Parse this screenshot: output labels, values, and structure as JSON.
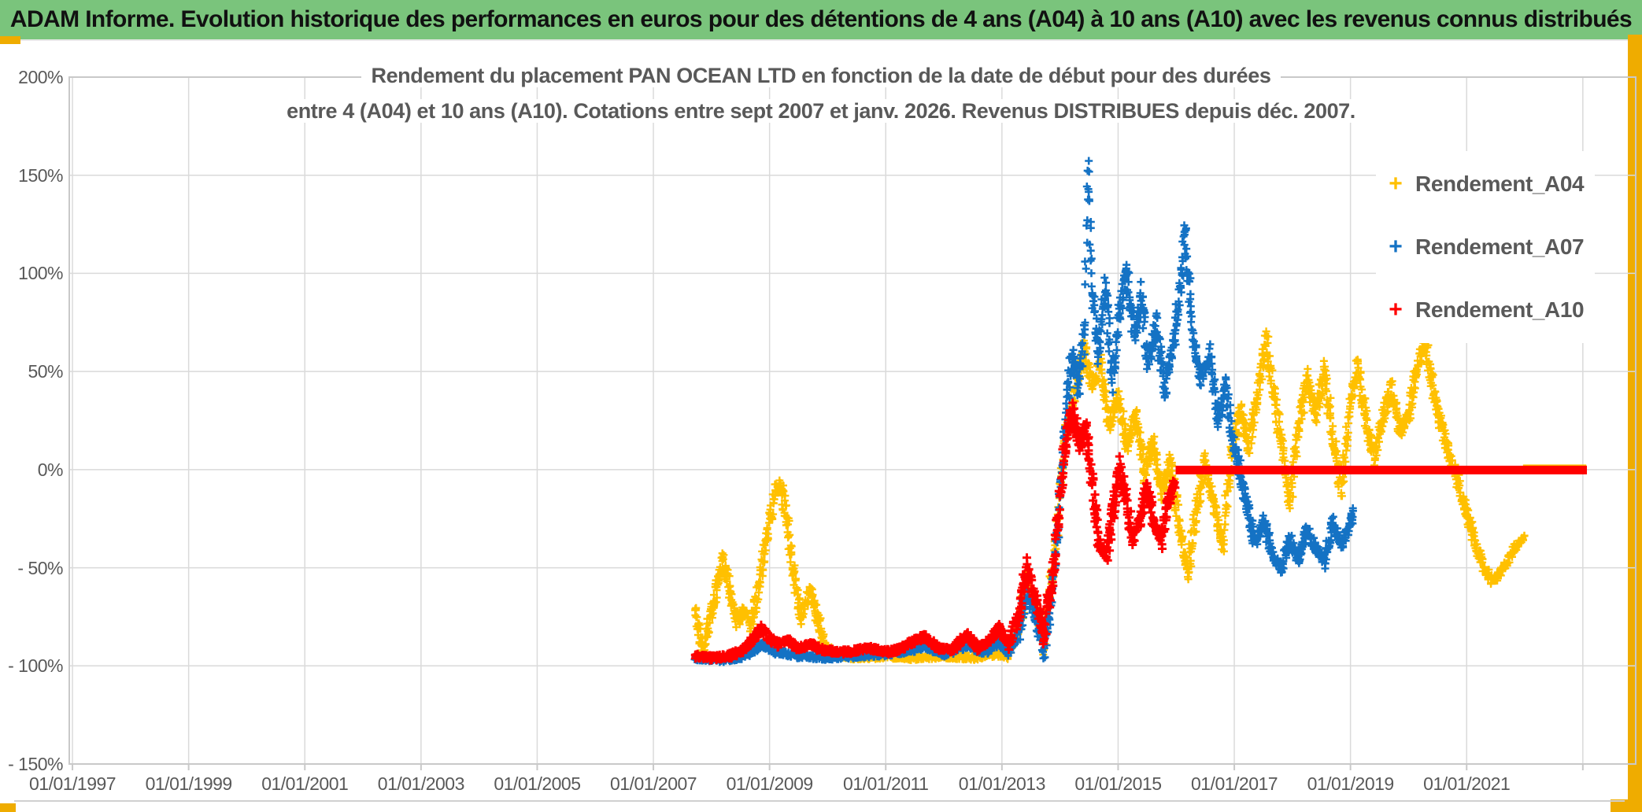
{
  "header": {
    "title": "ADAM Informe. Evolution historique des performances en euros pour des détentions de 4 ans (A04) à 10 ans (A10) avec les revenus connus distribués",
    "bg_color": "#7AC47C",
    "text_color": "#111111"
  },
  "accents": {
    "gold_color": "#EFAC00"
  },
  "chart_data": {
    "type": "scatter",
    "title_lines": [
      "Rendement du placement PAN OCEAN LTD en fonction de la date de début pour des durées",
      "entre 4 (A04) et 10 ans (A10). Cotations entre sept 2007 et janv. 2026. Revenus DISTRIBUES depuis déc. 2007."
    ],
    "x_axis": {
      "tick_labels": [
        "01/01/1997",
        "01/01/1999",
        "01/01/2001",
        "01/01/2003",
        "01/01/2005",
        "01/01/2007",
        "01/01/2009",
        "01/01/2011",
        "01/01/2013",
        "01/01/2015",
        "01/01/2017",
        "01/01/2019",
        "01/01/2021"
      ],
      "tick_years": [
        1997,
        1999,
        2001,
        2003,
        2005,
        2007,
        2009,
        2011,
        2013,
        2015,
        2017,
        2019,
        2021
      ],
      "extra_gridline_years": [
        2023
      ],
      "domain_years": [
        1996.945,
        2023.91
      ]
    },
    "y_axis": {
      "tick_labels": [
        "200%",
        "150%",
        "100%",
        "50%",
        "0%",
        "- 50%",
        "- 100%",
        "- 150%"
      ],
      "tick_values": [
        200,
        150,
        100,
        50,
        0,
        -50,
        -100,
        -150
      ],
      "domain": [
        -150,
        200
      ]
    },
    "grid_color": "#DADADA",
    "border_color": "#C9C9C9",
    "axis_text_color": "#595959",
    "legend_position": "top-right",
    "series": [
      {
        "name": "Rendement_A04",
        "color": "#FFC000",
        "marker": "plus",
        "zero_segment": [
          2021.97,
          2023.06
        ],
        "keyframes": [
          [
            2007.72,
            -72
          ],
          [
            2007.8,
            -85
          ],
          [
            2007.88,
            -93
          ],
          [
            2007.95,
            -80
          ],
          [
            2008.1,
            -58
          ],
          [
            2008.2,
            -46
          ],
          [
            2008.3,
            -60
          ],
          [
            2008.45,
            -78
          ],
          [
            2008.55,
            -72
          ],
          [
            2008.68,
            -78
          ],
          [
            2008.82,
            -60
          ],
          [
            2008.95,
            -35
          ],
          [
            2009.1,
            -12
          ],
          [
            2009.2,
            -6
          ],
          [
            2009.32,
            -30
          ],
          [
            2009.45,
            -60
          ],
          [
            2009.55,
            -75
          ],
          [
            2009.7,
            -62
          ],
          [
            2009.82,
            -75
          ],
          [
            2009.95,
            -90
          ],
          [
            2010.15,
            -94
          ],
          [
            2010.5,
            -96
          ],
          [
            2011.0,
            -95
          ],
          [
            2011.5,
            -96
          ],
          [
            2012.0,
            -95
          ],
          [
            2012.5,
            -96
          ],
          [
            2012.9,
            -94
          ],
          [
            2013.1,
            -95
          ],
          [
            2013.3,
            -80
          ],
          [
            2013.42,
            -58
          ],
          [
            2013.58,
            -70
          ],
          [
            2013.72,
            -88
          ],
          [
            2013.82,
            -62
          ],
          [
            2013.95,
            -30
          ],
          [
            2014.08,
            15
          ],
          [
            2014.25,
            40
          ],
          [
            2014.42,
            62
          ],
          [
            2014.55,
            42
          ],
          [
            2014.7,
            55
          ],
          [
            2014.85,
            22
          ],
          [
            2015.0,
            38
          ],
          [
            2015.15,
            12
          ],
          [
            2015.3,
            28
          ],
          [
            2015.45,
            -2
          ],
          [
            2015.6,
            14
          ],
          [
            2015.75,
            -12
          ],
          [
            2015.9,
            4
          ],
          [
            2016.05,
            -28
          ],
          [
            2016.2,
            -52
          ],
          [
            2016.35,
            -20
          ],
          [
            2016.5,
            5
          ],
          [
            2016.65,
            -18
          ],
          [
            2016.8,
            -38
          ],
          [
            2016.95,
            8
          ],
          [
            2017.1,
            30
          ],
          [
            2017.25,
            12
          ],
          [
            2017.4,
            40
          ],
          [
            2017.55,
            66
          ],
          [
            2017.7,
            35
          ],
          [
            2017.85,
            5
          ],
          [
            2017.95,
            -16
          ],
          [
            2018.1,
            20
          ],
          [
            2018.25,
            46
          ],
          [
            2018.4,
            28
          ],
          [
            2018.55,
            50
          ],
          [
            2018.7,
            18
          ],
          [
            2018.85,
            -12
          ],
          [
            2019.0,
            35
          ],
          [
            2019.12,
            52
          ],
          [
            2019.25,
            28
          ],
          [
            2019.4,
            5
          ],
          [
            2019.55,
            25
          ],
          [
            2019.7,
            42
          ],
          [
            2019.85,
            18
          ],
          [
            2020.0,
            28
          ],
          [
            2020.12,
            48
          ],
          [
            2020.28,
            66
          ],
          [
            2020.42,
            40
          ],
          [
            2020.55,
            24
          ],
          [
            2020.7,
            8
          ],
          [
            2020.85,
            -6
          ],
          [
            2021.0,
            -22
          ],
          [
            2021.15,
            -38
          ],
          [
            2021.3,
            -50
          ],
          [
            2021.45,
            -57
          ],
          [
            2021.6,
            -52
          ],
          [
            2021.75,
            -44
          ],
          [
            2021.88,
            -38
          ],
          [
            2022.0,
            -35
          ]
        ]
      },
      {
        "name": "Rendement_A07",
        "color": "#1472C4",
        "marker": "plus",
        "zero_segment": null,
        "keyframes": [
          [
            2007.72,
            -96
          ],
          [
            2008.2,
            -97
          ],
          [
            2008.6,
            -95
          ],
          [
            2008.86,
            -89
          ],
          [
            2009.1,
            -93
          ],
          [
            2009.5,
            -95
          ],
          [
            2010.0,
            -96
          ],
          [
            2010.5,
            -95
          ],
          [
            2011.0,
            -94
          ],
          [
            2011.45,
            -92
          ],
          [
            2011.7,
            -90
          ],
          [
            2012.0,
            -94
          ],
          [
            2012.4,
            -90
          ],
          [
            2012.7,
            -93
          ],
          [
            2012.95,
            -88
          ],
          [
            2013.1,
            -93
          ],
          [
            2013.3,
            -82
          ],
          [
            2013.42,
            -62
          ],
          [
            2013.58,
            -75
          ],
          [
            2013.72,
            -92
          ],
          [
            2013.85,
            -68
          ],
          [
            2013.97,
            -30
          ],
          [
            2014.08,
            20
          ],
          [
            2014.2,
            60
          ],
          [
            2014.32,
            40
          ],
          [
            2014.42,
            70
          ],
          [
            2014.48,
            157
          ],
          [
            2014.56,
            88
          ],
          [
            2014.66,
            58
          ],
          [
            2014.78,
            95
          ],
          [
            2014.9,
            45
          ],
          [
            2015.02,
            80
          ],
          [
            2015.15,
            100
          ],
          [
            2015.28,
            68
          ],
          [
            2015.4,
            88
          ],
          [
            2015.52,
            55
          ],
          [
            2015.65,
            75
          ],
          [
            2015.8,
            40
          ],
          [
            2015.95,
            65
          ],
          [
            2016.05,
            88
          ],
          [
            2016.15,
            122
          ],
          [
            2016.28,
            72
          ],
          [
            2016.42,
            45
          ],
          [
            2016.58,
            58
          ],
          [
            2016.72,
            25
          ],
          [
            2016.85,
            42
          ],
          [
            2016.95,
            18
          ],
          [
            2017.08,
            2
          ],
          [
            2017.2,
            -15
          ],
          [
            2017.35,
            -38
          ],
          [
            2017.5,
            -25
          ],
          [
            2017.65,
            -43
          ],
          [
            2017.8,
            -50
          ],
          [
            2017.95,
            -35
          ],
          [
            2018.1,
            -46
          ],
          [
            2018.25,
            -30
          ],
          [
            2018.4,
            -40
          ],
          [
            2018.55,
            -46
          ],
          [
            2018.7,
            -28
          ],
          [
            2018.85,
            -38
          ],
          [
            2018.97,
            -30
          ],
          [
            2019.06,
            -20
          ]
        ]
      },
      {
        "name": "Rendement_A10",
        "color": "#FF0000",
        "marker": "plus",
        "zero_segment": [
          2015.99,
          2023.07
        ],
        "keyframes": [
          [
            2007.72,
            -95
          ],
          [
            2008.0,
            -96
          ],
          [
            2008.3,
            -95
          ],
          [
            2008.55,
            -92
          ],
          [
            2008.86,
            -81
          ],
          [
            2009.0,
            -86
          ],
          [
            2009.15,
            -89
          ],
          [
            2009.3,
            -87
          ],
          [
            2009.5,
            -91
          ],
          [
            2009.7,
            -89
          ],
          [
            2009.9,
            -92
          ],
          [
            2010.3,
            -93
          ],
          [
            2010.7,
            -91
          ],
          [
            2011.1,
            -93
          ],
          [
            2011.45,
            -88
          ],
          [
            2011.67,
            -85
          ],
          [
            2011.9,
            -91
          ],
          [
            2012.15,
            -92
          ],
          [
            2012.4,
            -84
          ],
          [
            2012.6,
            -91
          ],
          [
            2012.82,
            -86
          ],
          [
            2012.95,
            -81
          ],
          [
            2013.12,
            -89
          ],
          [
            2013.3,
            -73
          ],
          [
            2013.42,
            -50
          ],
          [
            2013.55,
            -62
          ],
          [
            2013.72,
            -83
          ],
          [
            2013.85,
            -58
          ],
          [
            2013.97,
            -25
          ],
          [
            2014.08,
            12
          ],
          [
            2014.22,
            30
          ],
          [
            2014.35,
            12
          ],
          [
            2014.45,
            22
          ],
          [
            2014.55,
            -8
          ],
          [
            2014.68,
            -38
          ],
          [
            2014.8,
            -44
          ],
          [
            2014.92,
            -18
          ],
          [
            2015.02,
            2
          ],
          [
            2015.12,
            -12
          ],
          [
            2015.25,
            -35
          ],
          [
            2015.38,
            -25
          ],
          [
            2015.5,
            -10
          ],
          [
            2015.62,
            -28
          ],
          [
            2015.75,
            -35
          ],
          [
            2015.88,
            -15
          ],
          [
            2015.99,
            -6
          ]
        ]
      }
    ]
  }
}
